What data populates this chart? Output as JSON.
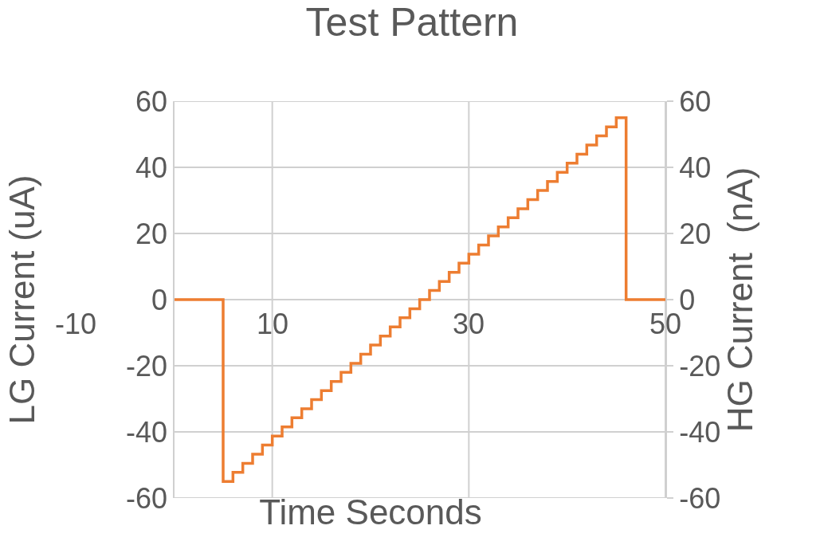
{
  "chart_data": {
    "type": "step",
    "title": "Test Pattern",
    "xlabel": "Time Seconds",
    "ylabel": "LG Current (uA)",
    "y2label": "HG Current  (nA)",
    "x": [
      0,
      5,
      6,
      7,
      8,
      9,
      10,
      11,
      12,
      13,
      14,
      15,
      16,
      17,
      18,
      19,
      20,
      21,
      22,
      23,
      24,
      25,
      26,
      27,
      28,
      29,
      30,
      31,
      32,
      33,
      34,
      35,
      36,
      37,
      38,
      39,
      40,
      41,
      42,
      43,
      44,
      45,
      46,
      50
    ],
    "series": [
      {
        "color": "#ed7d31",
        "values": [
          0,
          -55,
          -52.25,
          -49.5,
          -46.75,
          -44,
          -41.25,
          -38.5,
          -35.75,
          -33,
          -30.25,
          -27.5,
          -24.75,
          -22,
          -19.25,
          -16.5,
          -13.75,
          -11,
          -8.25,
          -5.5,
          -2.75,
          0,
          2.75,
          5.5,
          8.25,
          11,
          13.75,
          16.5,
          19.25,
          22,
          24.75,
          27.5,
          30.25,
          33,
          35.75,
          38.5,
          41.25,
          44,
          46.75,
          49.5,
          52.25,
          55,
          0,
          0
        ]
      }
    ],
    "xlim": [
      -10,
      50
    ],
    "xticks": [
      -10,
      10,
      30,
      50
    ],
    "ylim": [
      -60,
      60
    ],
    "yticks": [
      -60,
      -40,
      -20,
      0,
      20,
      40,
      60
    ],
    "y2lim": [
      -60,
      60
    ],
    "y2ticks": [
      -60,
      -40,
      -20,
      0,
      20,
      40,
      60
    ],
    "grid": true
  }
}
